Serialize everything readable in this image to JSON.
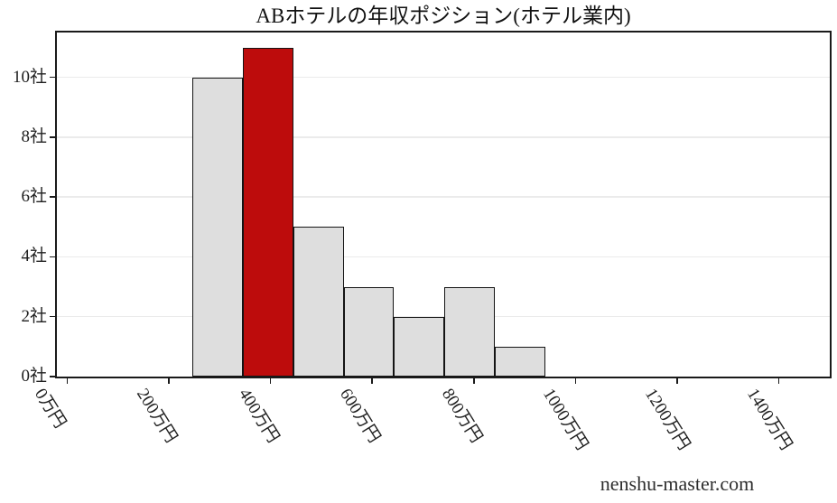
{
  "chart_data": {
    "type": "bar",
    "title": "ABホテルの年収ポジション(ホテル業内)",
    "x_unit": "万円",
    "y_unit": "社",
    "bin_edges": [
      246,
      345,
      445,
      544,
      643,
      742,
      841,
      940
    ],
    "counts": [
      10,
      11,
      5,
      3,
      2,
      3,
      1
    ],
    "highlight_bin_index": 1,
    "xticks": [
      {
        "value": 0,
        "label": "0万円"
      },
      {
        "value": 200,
        "label": "200万円"
      },
      {
        "value": 400,
        "label": "400万円"
      },
      {
        "value": 600,
        "label": "600万円"
      },
      {
        "value": 800,
        "label": "800万円"
      },
      {
        "value": 1000,
        "label": "1000万円"
      },
      {
        "value": 1200,
        "label": "1200万円"
      },
      {
        "value": 1400,
        "label": "1400万円"
      }
    ],
    "yticks": [
      {
        "value": 0,
        "label": "0社"
      },
      {
        "value": 2,
        "label": "2社"
      },
      {
        "value": 4,
        "label": "4社"
      },
      {
        "value": 6,
        "label": "6社"
      },
      {
        "value": 8,
        "label": "8社"
      },
      {
        "value": 10,
        "label": "10社"
      }
    ],
    "xlim": [
      -20,
      1500
    ],
    "ylim": [
      0,
      11.5
    ],
    "grid": {
      "axis": "y",
      "color": "#ebebeb"
    },
    "colors": {
      "bar_fill": "#dedede",
      "highlight_fill": "#bd0c0c",
      "bar_edge": "#141414",
      "spine": "#1a1a1a",
      "tick_text": "#1f1f1f"
    },
    "legend": null
  },
  "watermark": "nenshu-master.com"
}
